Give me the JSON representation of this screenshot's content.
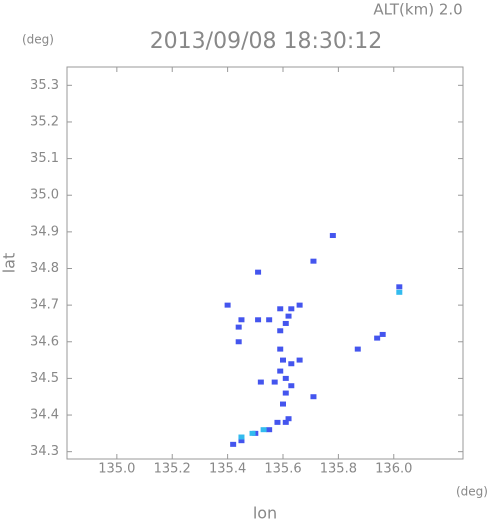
{
  "chart_data": {
    "type": "scatter",
    "title": "2013/09/08 18:30:12",
    "subtitle": "ALT(km) 2.0",
    "y_unit": "(deg)",
    "x_unit": "(deg)",
    "x_label": "lon",
    "y_label": "lat",
    "xlim": [
      134.82,
      136.25
    ],
    "ylim": [
      34.28,
      35.35
    ],
    "xticks": [
      {
        "value": 135.0,
        "label": "135.0"
      },
      135.2,
      135.4,
      135.6,
      135.8,
      {
        "value": 136.0,
        "label": "136.0"
      }
    ],
    "yticks": [
      34.3,
      34.4,
      34.5,
      34.6,
      34.7,
      34.8,
      34.9,
      {
        "value": 35.0,
        "label": "35.0"
      },
      35.1,
      35.2,
      35.3
    ],
    "series": [
      {
        "color": "#4455ee",
        "x": [
          135.51,
          135.71,
          135.78,
          135.4,
          135.45,
          135.44,
          135.44,
          135.51,
          135.55,
          135.59,
          135.63,
          135.66,
          135.62,
          135.61,
          135.59,
          135.59,
          135.6,
          135.63,
          135.66,
          135.59,
          135.61,
          135.63,
          135.61,
          135.6,
          135.52,
          135.57,
          135.71,
          135.61,
          135.58,
          135.55,
          135.5,
          135.45,
          135.42,
          135.87,
          135.94,
          135.96,
          136.02,
          135.62
        ],
        "y": [
          34.79,
          34.82,
          34.89,
          34.7,
          34.66,
          34.64,
          34.6,
          34.66,
          34.66,
          34.69,
          34.69,
          34.7,
          34.67,
          34.65,
          34.63,
          34.58,
          34.55,
          34.54,
          34.55,
          34.52,
          34.5,
          34.48,
          34.46,
          34.43,
          34.49,
          34.49,
          34.45,
          34.38,
          34.38,
          34.36,
          34.35,
          34.33,
          34.32,
          34.58,
          34.61,
          34.62,
          34.75,
          34.39
        ]
      },
      {
        "color": "#33bbee",
        "x": [
          136.02,
          135.45,
          135.49,
          135.53
        ],
        "y": [
          34.735,
          34.34,
          34.35,
          34.36
        ]
      }
    ]
  }
}
